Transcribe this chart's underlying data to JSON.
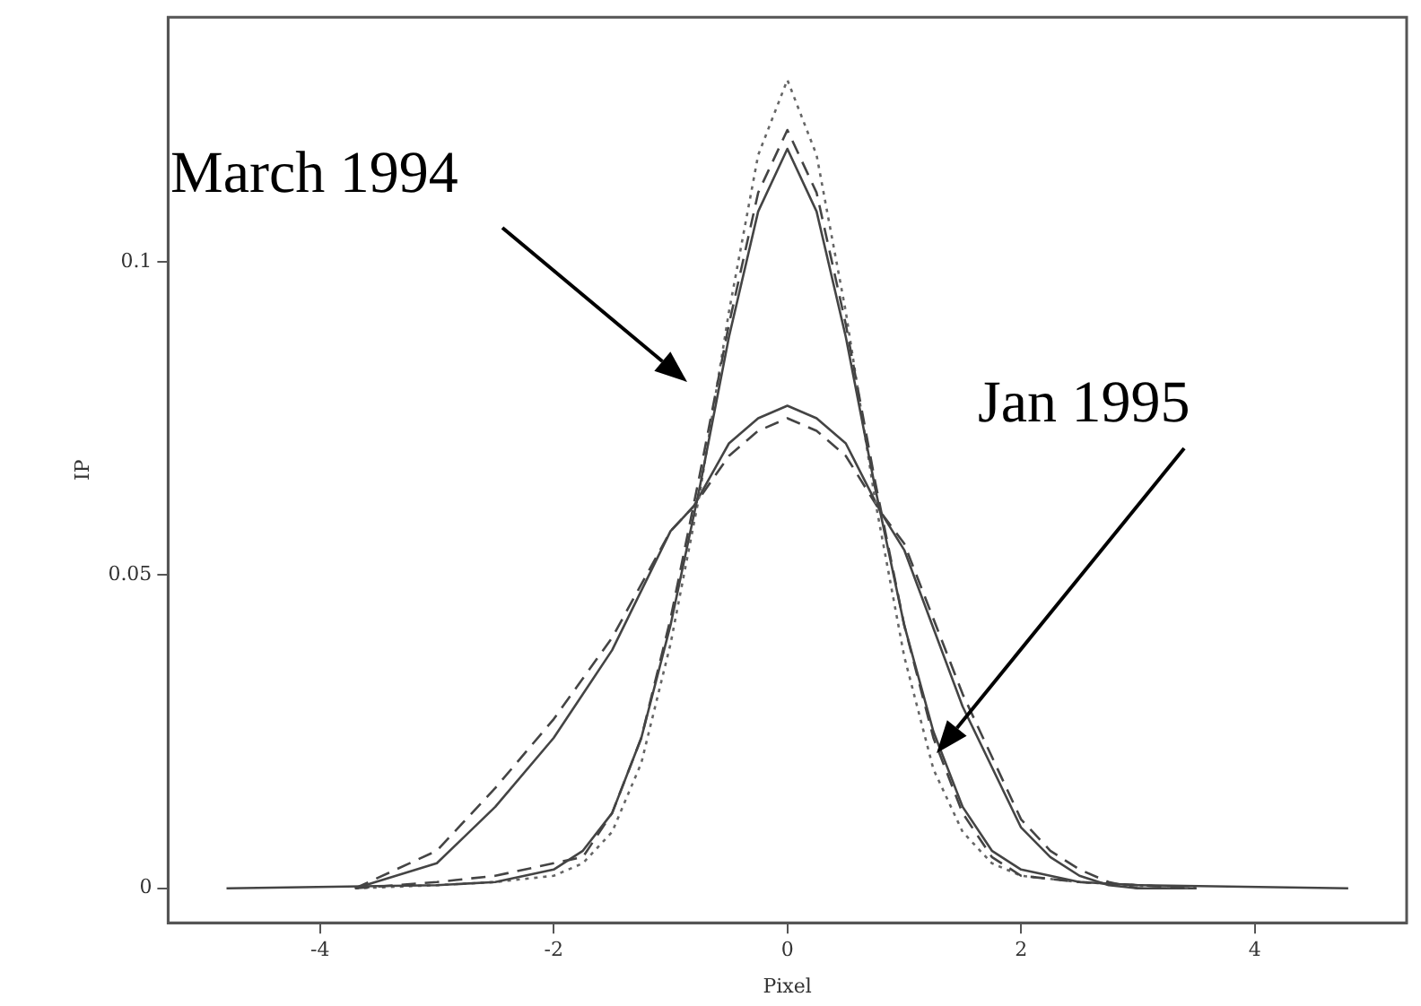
{
  "chart_data": {
    "type": "line",
    "xlabel": "Pixel",
    "ylabel": "IP",
    "xlim": [
      -5.3,
      5.3
    ],
    "ylim": [
      -0.0055,
      0.139
    ],
    "xticks": [
      -4,
      -2,
      0,
      2,
      4
    ],
    "yticks": [
      0,
      0.05,
      0.1
    ],
    "grid": false,
    "legend": false,
    "marker": "none",
    "annotations": [
      "March 1994",
      "Jan 1995"
    ],
    "series": [
      {
        "color": "#444444",
        "line_style": "solid",
        "x": [
          -4.8,
          -3,
          -2.5,
          -2,
          -1.75,
          -1.5,
          -1.25,
          -1,
          -0.75,
          -0.5,
          -0.25,
          0,
          0.25,
          0.5,
          0.75,
          1,
          1.25,
          1.5,
          1.75,
          2,
          2.5,
          3,
          4.8
        ],
        "values": [
          0,
          0.0005,
          0.001,
          0.003,
          0.006,
          0.012,
          0.024,
          0.042,
          0.064,
          0.088,
          0.108,
          0.118,
          0.108,
          0.088,
          0.064,
          0.042,
          0.025,
          0.013,
          0.006,
          0.003,
          0.001,
          0.0005,
          0
        ]
      },
      {
        "color": "#444444",
        "line_style": "dashed",
        "x": [
          -3.7,
          -3,
          -2.5,
          -2,
          -1.75,
          -1.5,
          -1.25,
          -1,
          -0.75,
          -0.5,
          -0.25,
          0,
          0.25,
          0.5,
          0.75,
          1,
          1.25,
          1.5,
          1.75,
          2,
          2.5,
          3,
          3.5
        ],
        "values": [
          0,
          0.001,
          0.002,
          0.004,
          0.005,
          0.012,
          0.024,
          0.043,
          0.066,
          0.09,
          0.111,
          0.121,
          0.111,
          0.09,
          0.065,
          0.042,
          0.024,
          0.012,
          0.005,
          0.002,
          0.001,
          0.0005,
          0
        ]
      },
      {
        "color": "#666666",
        "line_style": "dotted",
        "x": [
          -3.7,
          -3,
          -2.5,
          -2,
          -1.75,
          -1.5,
          -1.25,
          -1,
          -0.75,
          -0.5,
          -0.25,
          0,
          0.25,
          0.5,
          0.75,
          1,
          1.25,
          1.5,
          1.75,
          2,
          2.5,
          3,
          3.5
        ],
        "values": [
          0,
          0.0005,
          0.001,
          0.002,
          0.004,
          0.009,
          0.02,
          0.039,
          0.063,
          0.092,
          0.117,
          0.129,
          0.117,
          0.092,
          0.062,
          0.037,
          0.019,
          0.009,
          0.004,
          0.002,
          0.001,
          0.0005,
          0
        ]
      },
      {
        "color": "#444444",
        "line_style": "solid",
        "x": [
          -3.7,
          -3,
          -2.5,
          -2,
          -1.5,
          -1,
          -0.8,
          -0.5,
          -0.25,
          0,
          0.25,
          0.5,
          0.8,
          1,
          1.5,
          2,
          2.25,
          2.5,
          2.75,
          3,
          3.5
        ],
        "values": [
          0,
          0.004,
          0.013,
          0.024,
          0.038,
          0.057,
          0.061,
          0.071,
          0.075,
          0.077,
          0.075,
          0.071,
          0.06,
          0.054,
          0.029,
          0.0097,
          0.005,
          0.002,
          0.0005,
          0,
          0
        ]
      },
      {
        "color": "#444444",
        "line_style": "dashed",
        "x": [
          -3.7,
          -3,
          -2.5,
          -2,
          -1.5,
          -1,
          -0.8,
          -0.5,
          -0.25,
          0,
          0.25,
          0.5,
          0.8,
          1,
          1.5,
          2,
          2.25,
          2.5,
          2.75,
          3,
          3.5
        ],
        "values": [
          0,
          0.006,
          0.016,
          0.027,
          0.04,
          0.057,
          0.061,
          0.069,
          0.073,
          0.075,
          0.073,
          0.069,
          0.06,
          0.055,
          0.031,
          0.011,
          0.006,
          0.003,
          0.001,
          0,
          0
        ]
      }
    ]
  }
}
